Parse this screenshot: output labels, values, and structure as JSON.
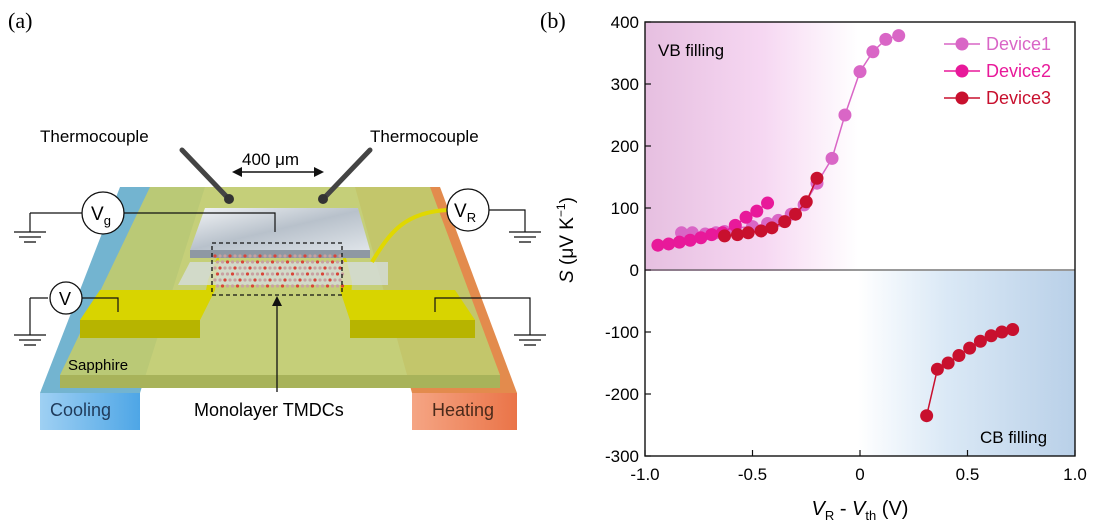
{
  "panel_a": {
    "label": "(a)",
    "thermocouple_left": "Thermocouple",
    "thermocouple_right": "Thermocouple",
    "distance": "400 μm",
    "vg_main": "V",
    "vg_sub": "g",
    "vr_main": "V",
    "vr_sub": "R",
    "v_meter": "V",
    "substrate": "Sapphire",
    "cooling": "Cooling",
    "heating": "Heating",
    "channel": "Monolayer TMDCs",
    "colors": {
      "cooling": "#6db4e8",
      "heating": "#ee8a5e",
      "substrate": "#b8c860",
      "electrode": "#d8d400"
    }
  },
  "panel_b": {
    "label": "(b)",
    "vb_region": "VB filling",
    "cb_region": "CB filling",
    "ylabel_var": "S",
    "ylabel_unit_open": " (μV K",
    "ylabel_sup": "−1",
    "ylabel_close": ")",
    "xlabel_v1": "V",
    "xlabel_s1": "R",
    "xlabel_mid": " - ",
    "xlabel_v2": "V",
    "xlabel_s2": "th",
    "xlabel_unit": " (V)"
  },
  "chart_data": {
    "type": "line",
    "title": "",
    "xlabel": "VR - Vth (V)",
    "ylabel": "S (μV K⁻¹)",
    "xlim": [
      -1.0,
      1.0
    ],
    "ylim": [
      -300,
      400
    ],
    "xticks": [
      -1.0,
      -0.5,
      0.0,
      0.5,
      1.0
    ],
    "xtick_labels": [
      "-1.0",
      "-0.5",
      "0",
      "0.5",
      "1.0"
    ],
    "yticks": [
      -300,
      -200,
      -100,
      0,
      100,
      200,
      300,
      400
    ],
    "legend_position": "top-right",
    "grid": false,
    "series": [
      {
        "name": "Device1",
        "color": "#d966c6",
        "x": [
          -0.83,
          -0.78,
          -0.72,
          -0.67,
          -0.63,
          -0.58,
          -0.5,
          -0.43,
          -0.38,
          -0.32,
          -0.26,
          -0.2,
          -0.13,
          -0.07,
          0.0,
          0.06,
          0.12,
          0.18
        ],
        "y": [
          60,
          60,
          58,
          60,
          62,
          68,
          70,
          75,
          80,
          90,
          105,
          140,
          180,
          250,
          320,
          352,
          372,
          378
        ]
      },
      {
        "name": "Device2",
        "color": "#e8199a",
        "x": [
          -0.94,
          -0.89,
          -0.84,
          -0.79,
          -0.74,
          -0.69,
          -0.64,
          -0.58,
          -0.53,
          -0.48,
          -0.43
        ],
        "y": [
          40,
          42,
          45,
          48,
          52,
          57,
          60,
          72,
          85,
          95,
          108
        ]
      },
      {
        "name": "Device3",
        "color": "#c8102e",
        "x": [
          -0.63,
          -0.57,
          -0.52,
          -0.46,
          -0.41,
          -0.35,
          -0.3,
          -0.25,
          -0.2,
          0.31,
          0.36,
          0.41,
          0.46,
          0.51,
          0.56,
          0.61,
          0.66,
          0.71
        ],
        "y": [
          55,
          57,
          60,
          63,
          68,
          78,
          90,
          110,
          148,
          -235,
          -160,
          -150,
          -138,
          -126,
          -115,
          -106,
          -100,
          -96
        ]
      }
    ]
  }
}
